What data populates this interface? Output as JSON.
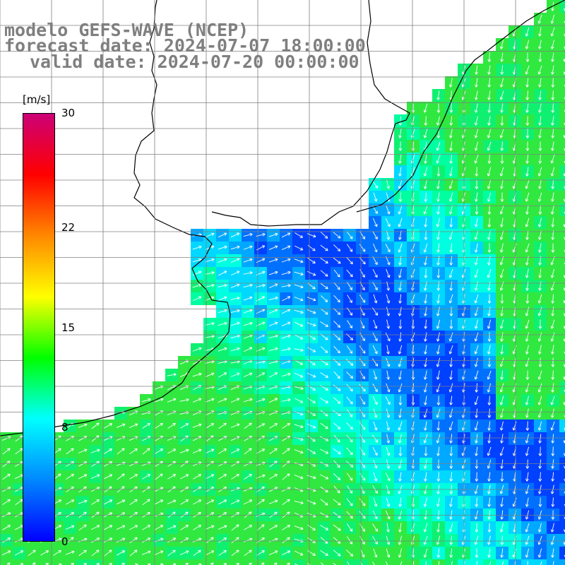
{
  "title": {
    "line1": "modelo GEFS-WAVE (NCEP)",
    "line2": "forecast date: 2024-07-07 18:00:00",
    "line3": "valid date: 2024-07-20 00:00:00"
  },
  "colorbar": {
    "unit": "[m/s]",
    "ticks": [
      "30",
      "22",
      "15",
      "8",
      "0"
    ],
    "tick_values": [
      30,
      22,
      15,
      8,
      0
    ],
    "range": [
      0,
      30
    ],
    "colors": [
      "#0000ff",
      "#0088ff",
      "#00ffff",
      "#00ff00",
      "#ffff00",
      "#ff8800",
      "#ff0000",
      "#cc0077"
    ]
  },
  "map": {
    "background_land": "#ffffff",
    "grid_color": "#888888",
    "coastline_color": "#000000",
    "arrow_color": "#ffffff",
    "field": "wind speed with direction arrows",
    "dominant_wind_direction": "southwest to northeast"
  }
}
